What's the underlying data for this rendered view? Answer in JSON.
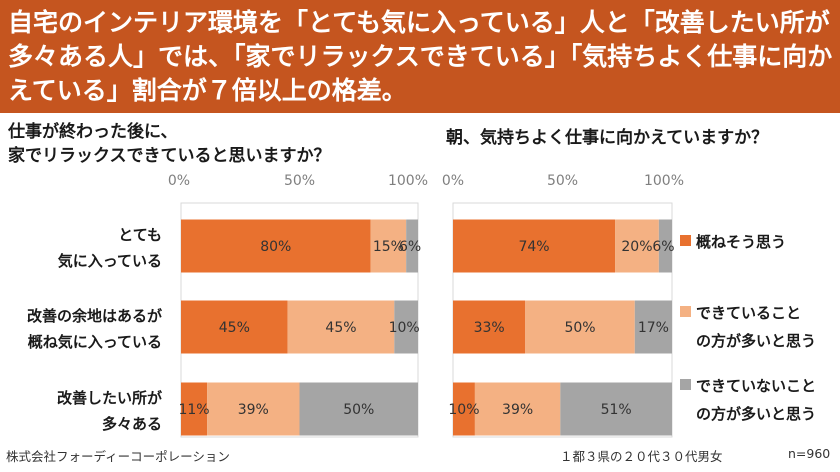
{
  "header": {
    "headline": "自宅のインテリア環境を「とても気に入っている」人と「改善したい所が多々ある人」では、「家でリラックスできている」「気持ちよく仕事に向かえている」割合が７倍以上の格差。",
    "background_color": "#c5551f"
  },
  "questions": {
    "left": [
      "仕事が終わった後に、",
      "家でリラックスできていると思いますか？"
    ],
    "right": "朝、気持ちよく仕事に向かえていますか？"
  },
  "row_labels": [
    [
      "とても",
      "気に入っている"
    ],
    [
      "改善の余地はあるが",
      "概ね気に入っている"
    ],
    [
      "改善したい所が",
      "多々ある"
    ]
  ],
  "legend": [
    {
      "lines": [
        "概ねそう思う"
      ],
      "color": "#e8712f"
    },
    {
      "lines": [
        "できていること",
        "の方が多いと思う"
      ],
      "color": "#f4b183"
    },
    {
      "lines": [
        "できていないこと",
        "の方が多いと思う"
      ],
      "color": "#a5a5a5"
    }
  ],
  "footer": {
    "source": "株式会社フォーディーコーポレーション",
    "sample": "１都３県の２０代３０代男女",
    "n": "n=960"
  },
  "chart_data": [
    {
      "type": "bar",
      "stacked": true,
      "orientation": "horizontal",
      "title": "仕事が終わった後に、家でリラックスできていると思いますか？",
      "categories": [
        "とても気に入っている",
        "改善の余地はあるが概ね気に入っている",
        "改善したい所が多々ある"
      ],
      "x_ticks": [
        "0%",
        "50%",
        "100%"
      ],
      "xlim": [
        0,
        100
      ],
      "series": [
        {
          "name": "概ねそう思う",
          "values": [
            80,
            45,
            11
          ],
          "labels": [
            "80%",
            "45%",
            "11%"
          ],
          "color": "#e8712f"
        },
        {
          "name": "できていることの方が多いと思う",
          "values": [
            15,
            45,
            39
          ],
          "labels": [
            "15%",
            "45%",
            "39%"
          ],
          "color": "#f4b183"
        },
        {
          "name": "できていないことの方が多いと思う",
          "values": [
            6,
            10,
            50
          ],
          "labels": [
            "6%",
            "10%",
            "50%"
          ],
          "color": "#a5a5a5"
        }
      ]
    },
    {
      "type": "bar",
      "stacked": true,
      "orientation": "horizontal",
      "title": "朝、気持ちよく仕事に向かえていますか？",
      "categories": [
        "とても気に入っている",
        "改善の余地はあるが概ね気に入っている",
        "改善したい所が多々ある"
      ],
      "x_ticks": [
        "0%",
        "50%",
        "100%"
      ],
      "xlim": [
        0,
        100
      ],
      "series": [
        {
          "name": "概ねそう思う",
          "values": [
            74,
            33,
            10
          ],
          "labels": [
            "74%",
            "33%",
            "10%"
          ],
          "color": "#e8712f"
        },
        {
          "name": "できていることの方が多いと思う",
          "values": [
            20,
            50,
            39
          ],
          "labels": [
            "20%",
            "50%",
            "39%"
          ],
          "color": "#f4b183"
        },
        {
          "name": "できていないことの方が多いと思う",
          "values": [
            6,
            17,
            51
          ],
          "labels": [
            "6%",
            "17%",
            "51%"
          ],
          "color": "#a5a5a5"
        }
      ]
    }
  ]
}
